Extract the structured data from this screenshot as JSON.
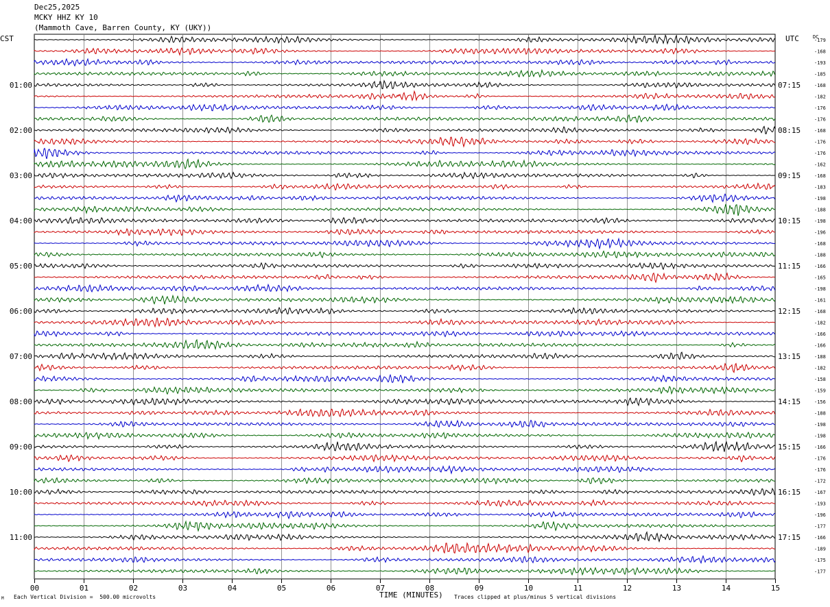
{
  "header": {
    "date": "Dec25,2025",
    "station": "MCKY HHZ KY 10",
    "location": "(Mammoth Cave, Barren County, KY (UKY))"
  },
  "labels": {
    "left_zone": "CST",
    "right_zone": "UTC",
    "dc_header": "DC",
    "xlabel": "TIME (MINUTES)",
    "scale_note": "Each Vertical Division =  500.00 microvolts",
    "clip_note": "Traces clipped at plus/minus 5 vertical divisions",
    "corner_mark": "M"
  },
  "chart_data": {
    "type": "line",
    "x_ticks": [
      "00",
      "01",
      "02",
      "03",
      "04",
      "05",
      "06",
      "07",
      "08",
      "09",
      "10",
      "11",
      "12",
      "13",
      "14",
      "15"
    ],
    "xlim": [
      0,
      15
    ],
    "trace_count": 48,
    "trace_colors": [
      "#000000",
      "#cc0000",
      "#0000cc",
      "#006600"
    ],
    "left_hour_labels": [
      "01:00",
      "02:00",
      "03:00",
      "04:00",
      "05:00",
      "06:00",
      "07:00",
      "08:00",
      "09:00",
      "10:00",
      "11:00"
    ],
    "right_hour_labels": [
      "07:15",
      "08:15",
      "09:15",
      "10:15",
      "11:15",
      "12:15",
      "13:15",
      "14:15",
      "15:15",
      "16:15",
      "17:15"
    ],
    "hour_label_start_trace": 4,
    "hour_label_step": 4,
    "dc_offsets": [
      "-179",
      "-168",
      "-193",
      "-185",
      "-168",
      "-182",
      "-176",
      "-176",
      "-168",
      "-176",
      "-176",
      "-162",
      "-168",
      "-183",
      "-198",
      "-188",
      "-198",
      "-196",
      "-168",
      "-188",
      "-166",
      "-165",
      "-198",
      "-161",
      "-168",
      "-182",
      "-166",
      "-166",
      "-188",
      "-182",
      "-158",
      "-159",
      "-156",
      "-188",
      "-198",
      "-198",
      "-166",
      "-176",
      "-176",
      "-172",
      "-167",
      "-193",
      "-196",
      "-177",
      "-166",
      "-189",
      "-175",
      "-177"
    ],
    "grid": true
  }
}
